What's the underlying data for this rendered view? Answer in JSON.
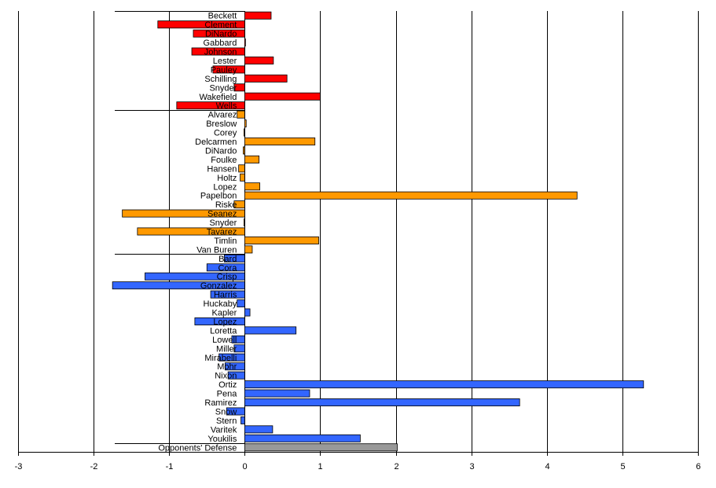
{
  "chart_data": {
    "type": "bar",
    "orientation": "horizontal",
    "title": "",
    "xlabel": "",
    "ylabel": "",
    "xlim": [
      -3,
      6
    ],
    "xticks": [
      -3,
      -2,
      -1,
      0,
      1,
      2,
      3,
      4,
      5,
      6
    ],
    "grid": true,
    "legend": "none",
    "colors": {
      "red": "#ff0000",
      "orange": "#ff9900",
      "blue": "#3366ff",
      "gray": "#999999"
    },
    "bars": [
      {
        "label": "Beckett",
        "value": 0.35,
        "color": "red"
      },
      {
        "label": "Clement",
        "value": -1.15,
        "color": "red"
      },
      {
        "label": "DiNardo",
        "value": -0.68,
        "color": "red"
      },
      {
        "label": "Gabbard",
        "value": 0.01,
        "color": "red"
      },
      {
        "label": "Johnson",
        "value": -0.7,
        "color": "red"
      },
      {
        "label": "Lester",
        "value": 0.38,
        "color": "red"
      },
      {
        "label": "Pauley",
        "value": -0.42,
        "color": "red"
      },
      {
        "label": "Schilling",
        "value": 0.56,
        "color": "red"
      },
      {
        "label": "Snyder",
        "value": -0.14,
        "color": "red"
      },
      {
        "label": "Wakefield",
        "value": 1.0,
        "color": "red"
      },
      {
        "label": "Wells",
        "value": -0.9,
        "color": "red"
      },
      {
        "label": "Alvarez",
        "value": -0.1,
        "color": "orange"
      },
      {
        "label": "Breslow",
        "value": 0.02,
        "color": "orange"
      },
      {
        "label": "Corey",
        "value": -0.01,
        "color": "orange"
      },
      {
        "label": "Delcarmen",
        "value": 0.93,
        "color": "orange"
      },
      {
        "label": "DiNardo",
        "value": -0.02,
        "color": "orange"
      },
      {
        "label": "Foulke",
        "value": 0.19,
        "color": "orange"
      },
      {
        "label": "Hansen",
        "value": -0.08,
        "color": "orange"
      },
      {
        "label": "Holtz",
        "value": -0.06,
        "color": "orange"
      },
      {
        "label": "Lopez",
        "value": 0.2,
        "color": "orange"
      },
      {
        "label": "Papelbon",
        "value": 4.4,
        "color": "orange"
      },
      {
        "label": "Riske",
        "value": -0.14,
        "color": "orange"
      },
      {
        "label": "Seanez",
        "value": -1.62,
        "color": "orange"
      },
      {
        "label": "Snyder",
        "value": -0.01,
        "color": "orange"
      },
      {
        "label": "Tavarez",
        "value": -1.42,
        "color": "orange"
      },
      {
        "label": "Timlin",
        "value": 0.98,
        "color": "orange"
      },
      {
        "label": "Van Buren",
        "value": 0.1,
        "color": "orange"
      },
      {
        "label": "Bard",
        "value": -0.27,
        "color": "blue"
      },
      {
        "label": "Cora",
        "value": -0.5,
        "color": "blue"
      },
      {
        "label": "Crisp",
        "value": -1.32,
        "color": "blue"
      },
      {
        "label": "Gonzalez",
        "value": -1.75,
        "color": "blue"
      },
      {
        "label": "Harris",
        "value": -0.45,
        "color": "blue"
      },
      {
        "label": "Huckaby",
        "value": -0.1,
        "color": "blue"
      },
      {
        "label": "Kapler",
        "value": 0.07,
        "color": "blue"
      },
      {
        "label": "Lopez",
        "value": -0.66,
        "color": "blue"
      },
      {
        "label": "Loretta",
        "value": 0.68,
        "color": "blue"
      },
      {
        "label": "Lowell",
        "value": -0.17,
        "color": "blue"
      },
      {
        "label": "Miller",
        "value": -0.14,
        "color": "blue"
      },
      {
        "label": "Mirabelli",
        "value": -0.34,
        "color": "blue"
      },
      {
        "label": "Mohr",
        "value": -0.26,
        "color": "blue"
      },
      {
        "label": "Nixon",
        "value": -0.22,
        "color": "blue"
      },
      {
        "label": "Ortiz",
        "value": 5.28,
        "color": "blue"
      },
      {
        "label": "Pena",
        "value": 0.86,
        "color": "blue"
      },
      {
        "label": "Ramirez",
        "value": 3.64,
        "color": "blue"
      },
      {
        "label": "Snow",
        "value": -0.24,
        "color": "blue"
      },
      {
        "label": "Stern",
        "value": -0.05,
        "color": "blue"
      },
      {
        "label": "Varitek",
        "value": 0.37,
        "color": "blue"
      },
      {
        "label": "Youkilis",
        "value": 1.53,
        "color": "blue"
      },
      {
        "label": "Opponents' Defense",
        "value": 2.02,
        "color": "gray"
      }
    ]
  }
}
